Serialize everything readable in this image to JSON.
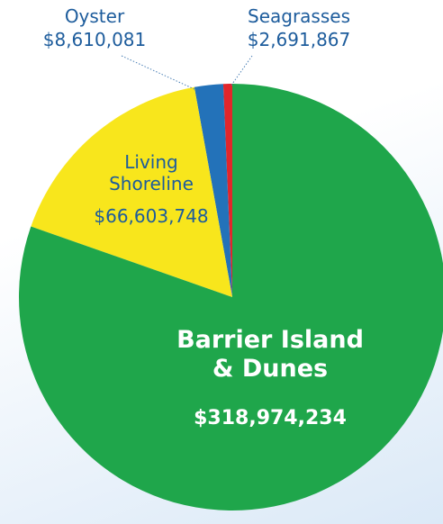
{
  "chart_data": {
    "type": "pie",
    "categories": [
      "Barrier Island & Dunes",
      "Living Shoreline",
      "Oyster",
      "Seagrasses"
    ],
    "values": [
      318974234,
      66603748,
      8610081,
      2691867
    ],
    "value_labels": [
      "$318,974,234",
      "$66,603,748",
      "$8,610,081",
      "$2,691,867"
    ],
    "colors": [
      "#1fa64b",
      "#f8e61c",
      "#2372b9",
      "#e1262b"
    ]
  }
}
